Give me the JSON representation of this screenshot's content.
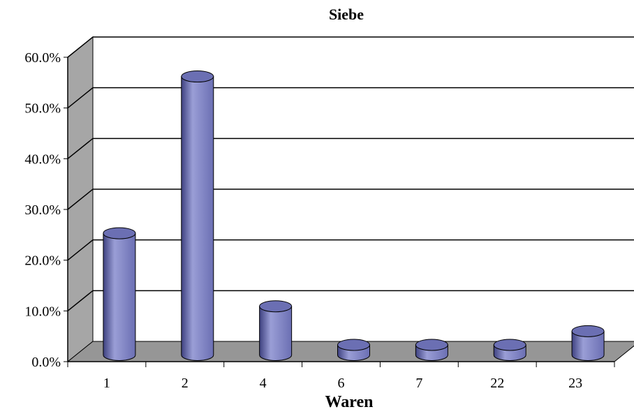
{
  "chart_data": {
    "type": "bar",
    "style": "3d-cylinder",
    "title": "Siebe",
    "xlabel": "Waren",
    "ylabel": "",
    "categories": [
      "1",
      "2",
      "4",
      "6",
      "7",
      "22",
      "23"
    ],
    "series": [
      {
        "values": [
          24.0,
          54.9,
          9.6,
          2.0,
          2.0,
          2.0,
          4.7
        ]
      }
    ],
    "ylim": [
      0,
      60
    ],
    "yticks": [
      0,
      10,
      20,
      30,
      40,
      50,
      60
    ],
    "ytick_labels": [
      "0.0%",
      "10.0%",
      "20.0%",
      "30.0%",
      "40.0%",
      "50.0%",
      "60.0%"
    ],
    "grid": true,
    "legend": "none",
    "colors": {
      "bar": "#6b6fb3",
      "bar_light": "#9a9ed6",
      "bar_dark": "#3e4180",
      "wall": "#ffffff",
      "side_wall": "#a6a6a6",
      "floor": "#969696",
      "gridline": "#000000"
    }
  }
}
